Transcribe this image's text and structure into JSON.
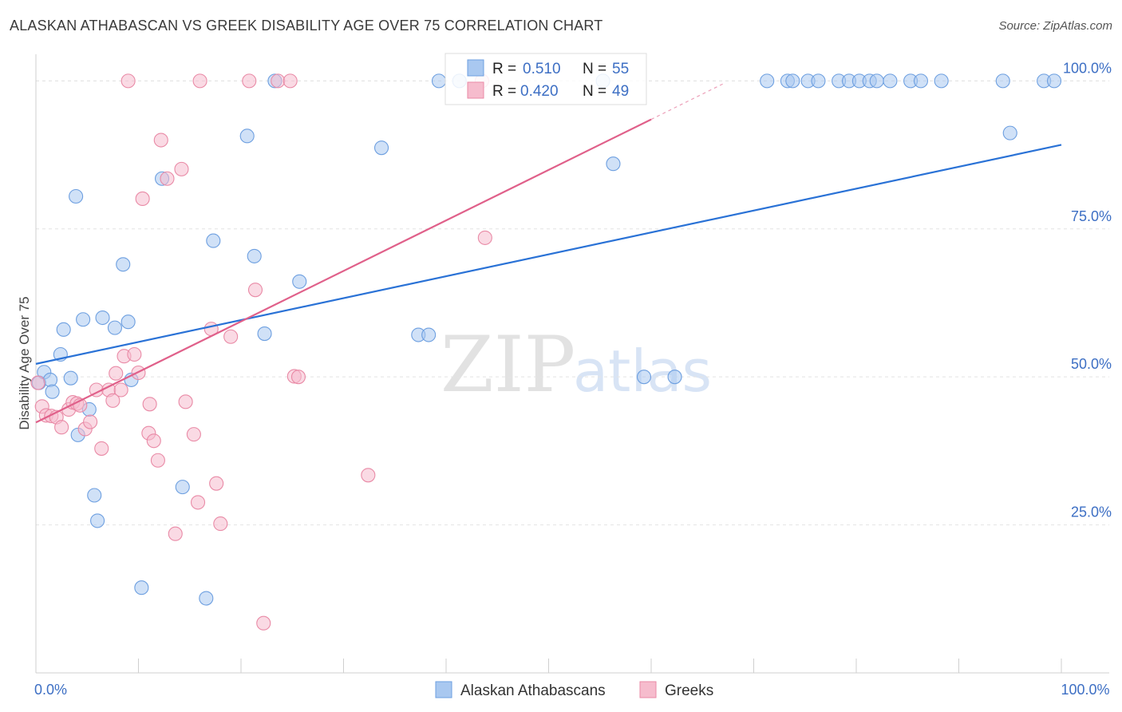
{
  "header": {
    "title": "ALASKAN ATHABASCAN VS GREEK DISABILITY AGE OVER 75 CORRELATION CHART",
    "source": "Source: ZipAtlas.com"
  },
  "watermark": {
    "zip": "ZIP",
    "atlas": "atlas"
  },
  "legend_stats": {
    "r_label": "R =",
    "n_label": "N =",
    "rows": [
      {
        "r": "0.510",
        "n": "55"
      },
      {
        "r": "0.420",
        "n": "49"
      }
    ]
  },
  "chart_data": {
    "type": "scatter",
    "title": "ALASKAN ATHABASCAN VS GREEK DISABILITY AGE OVER 75 CORRELATION CHART",
    "xlabel": "",
    "ylabel": "Disability Age Over 75",
    "xlim": [
      0,
      100
    ],
    "ylim": [
      0,
      104.5
    ],
    "y_ticks": [
      {
        "value": 25,
        "label": "25.0%"
      },
      {
        "value": 50,
        "label": "50.0%"
      },
      {
        "value": 75,
        "label": "75.0%"
      },
      {
        "value": 100,
        "label": "100.0%"
      }
    ],
    "x_ticks": [
      {
        "value": 0,
        "label": "0.0%"
      },
      {
        "value": 100,
        "label": "100.0%"
      }
    ],
    "x_minor_ticks": [
      0,
      10,
      20,
      30,
      40,
      50,
      60,
      70,
      80,
      90,
      100
    ],
    "grid": true,
    "legend_position": "bottom-center",
    "series": [
      {
        "name": "Alaskan Athabascans",
        "color": "#a9c8f0",
        "edge": "#6d9fe0",
        "line_color": "#2a72d6",
        "r": 0.51,
        "n": 55,
        "trend": {
          "x0": 0,
          "y0": 52.2,
          "x1": 100,
          "y1": 89.2
        },
        "points": [
          [
            0.3,
            49.0
          ],
          [
            0.8,
            50.8
          ],
          [
            1.4,
            49.5
          ],
          [
            1.6,
            47.5
          ],
          [
            2.4,
            53.8
          ],
          [
            2.7,
            58.0
          ],
          [
            3.4,
            49.8
          ],
          [
            3.9,
            80.5
          ],
          [
            4.1,
            40.2
          ],
          [
            4.6,
            59.7
          ],
          [
            5.2,
            44.5
          ],
          [
            5.7,
            30.0
          ],
          [
            6.0,
            25.7
          ],
          [
            6.5,
            60.0
          ],
          [
            7.7,
            58.3
          ],
          [
            8.5,
            69.0
          ],
          [
            9.0,
            59.3
          ],
          [
            9.3,
            49.5
          ],
          [
            10.3,
            14.4
          ],
          [
            12.3,
            83.5
          ],
          [
            14.3,
            31.4
          ],
          [
            16.6,
            12.6
          ],
          [
            17.3,
            73.0
          ],
          [
            20.6,
            90.7
          ],
          [
            21.3,
            70.4
          ],
          [
            22.3,
            57.3
          ],
          [
            23.3,
            100.0
          ],
          [
            25.7,
            66.1
          ],
          [
            33.7,
            88.7
          ],
          [
            37.3,
            57.1
          ],
          [
            38.3,
            57.1
          ],
          [
            39.3,
            100.0
          ],
          [
            41.3,
            100.0
          ],
          [
            55.3,
            100.0
          ],
          [
            56.3,
            86.0
          ],
          [
            59.3,
            50.0
          ],
          [
            62.3,
            50.0
          ],
          [
            71.3,
            100.0
          ],
          [
            73.3,
            100.0
          ],
          [
            73.8,
            100.0
          ],
          [
            75.3,
            100.0
          ],
          [
            76.3,
            100.0
          ],
          [
            78.3,
            100.0
          ],
          [
            79.3,
            100.0
          ],
          [
            80.3,
            100.0
          ],
          [
            81.3,
            100.0
          ],
          [
            82.0,
            100.0
          ],
          [
            83.3,
            100.0
          ],
          [
            85.3,
            100.0
          ],
          [
            86.3,
            100.0
          ],
          [
            88.3,
            100.0
          ],
          [
            94.3,
            100.0
          ],
          [
            98.3,
            100.0
          ],
          [
            99.3,
            100.0
          ],
          [
            95.0,
            91.2
          ]
        ]
      },
      {
        "name": "Greeks",
        "color": "#f6bccd",
        "edge": "#e98aa6",
        "line_color": "#e0608a",
        "r": 0.42,
        "n": 49,
        "trend": {
          "x0": 0,
          "y0": 42.3,
          "x1": 60,
          "y1": 93.5,
          "dash_x1": 67,
          "dash_y1": 99.5
        },
        "points": [
          [
            0.2,
            49.0
          ],
          [
            0.6,
            45.0
          ],
          [
            1.0,
            43.5
          ],
          [
            1.5,
            43.4
          ],
          [
            2.0,
            43.2
          ],
          [
            2.5,
            41.5
          ],
          [
            3.2,
            44.5
          ],
          [
            3.6,
            45.7
          ],
          [
            4.0,
            45.5
          ],
          [
            4.3,
            45.2
          ],
          [
            4.8,
            41.2
          ],
          [
            5.3,
            42.4
          ],
          [
            5.9,
            47.8
          ],
          [
            6.4,
            37.9
          ],
          [
            7.1,
            47.8
          ],
          [
            7.5,
            46.0
          ],
          [
            7.8,
            50.6
          ],
          [
            8.3,
            47.8
          ],
          [
            8.6,
            53.5
          ],
          [
            9.6,
            53.8
          ],
          [
            10.0,
            50.7
          ],
          [
            10.4,
            80.1
          ],
          [
            11.1,
            45.4
          ],
          [
            11.0,
            40.5
          ],
          [
            11.5,
            39.2
          ],
          [
            11.9,
            35.9
          ],
          [
            12.8,
            83.5
          ],
          [
            13.6,
            23.5
          ],
          [
            14.2,
            85.1
          ],
          [
            14.6,
            45.8
          ],
          [
            15.4,
            40.3
          ],
          [
            15.8,
            28.8
          ],
          [
            17.1,
            58.1
          ],
          [
            17.6,
            32.0
          ],
          [
            18.0,
            25.2
          ],
          [
            19.0,
            56.8
          ],
          [
            20.8,
            100.0
          ],
          [
            21.4,
            64.7
          ],
          [
            22.2,
            8.4
          ],
          [
            23.6,
            100.0
          ],
          [
            24.8,
            100.0
          ],
          [
            25.2,
            50.1
          ],
          [
            25.6,
            50.0
          ],
          [
            32.4,
            33.4
          ],
          [
            43.8,
            73.5
          ],
          [
            12.2,
            90.0
          ],
          [
            9.0,
            100.0
          ],
          [
            43.5,
            100.0
          ],
          [
            16.0,
            100.0
          ]
        ]
      }
    ]
  }
}
